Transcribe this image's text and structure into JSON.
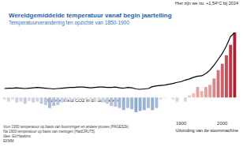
{
  "chart_data": {
    "type": "bar",
    "title": "Wereldgemiddelde temperatuur vanaf begin jaartelling",
    "subtitle": "Temperatuurverandering ten opzichte van 1850-1900",
    "annotations": [
      "Hier zijn we nu: +1,54°C bij 2024",
      "Uitvinding van de stoommachine"
    ],
    "footnotes": [
      "Voor 1900 temperatuur op basis van boomringen en andere proxies (PAGES2k)",
      "Na 1900 temperatuur op basis van metingen (HadCRUT5)",
      "Idee: Ed Hawkins",
      "EKMM"
    ],
    "categories": [
      null,
      null,
      null,
      null,
      null,
      null,
      null,
      null,
      null,
      null,
      null,
      null,
      null,
      null,
      null,
      null,
      null,
      null,
      null,
      null,
      null,
      null,
      null,
      null,
      null,
      null,
      null,
      null,
      null,
      null,
      null,
      null,
      null,
      null,
      null,
      null,
      null,
      null,
      null,
      null,
      null,
      null,
      null,
      "1900",
      null,
      null,
      null,
      null,
      null,
      null,
      null,
      null,
      null,
      "2000",
      null,
      null,
      null
    ],
    "series": [
      {
        "type": "bar",
        "values": [
          -0.05,
          -0.1,
          -0.05,
          -0.12,
          -0.1,
          -0.15,
          -0.08,
          -0.12,
          -0.1,
          -0.15,
          -0.18,
          -0.25,
          -0.2,
          -0.18,
          -0.12,
          -0.1,
          -0.08,
          -0.06,
          -0.05,
          -0.04,
          -0.05,
          -0.07,
          -0.1,
          -0.08,
          -0.12,
          -0.15,
          -0.2,
          -0.22,
          -0.25,
          -0.3,
          -0.25,
          -0.28,
          -0.35,
          -0.32,
          -0.3,
          -0.25,
          -0.3,
          -0.25,
          -0.05,
          -0.02,
          0.0,
          -0.05,
          -0.1,
          0.0,
          -0.1,
          0.05,
          0.1,
          0.25,
          0.15,
          0.25,
          0.3,
          0.45,
          0.65,
          0.8,
          1.0,
          1.25,
          1.54
        ]
      },
      {
        "type": "line",
        "name": "Hoeveelheid CO2 in de atmosfeer",
        "axis": "y2",
        "color": "#000000",
        "values": [
          278,
          279,
          279,
          280,
          279,
          278,
          279,
          280,
          281,
          280,
          279,
          278,
          277,
          278,
          279,
          280,
          281,
          281,
          282,
          282,
          281,
          280,
          281,
          282,
          282,
          281,
          281,
          282,
          280,
          279,
          281,
          280,
          277,
          276,
          277,
          278,
          283,
          285,
          286,
          287,
          289,
          291,
          294,
          296,
          300,
          303,
          307,
          310,
          311,
          317,
          326,
          339,
          354,
          369,
          389,
          413,
          423
        ]
      }
    ],
    "ylim": [
      -0.5,
      1.6
    ],
    "y2lim": [
      200,
      430
    ],
    "grid": false,
    "tick_labels": "x"
  }
}
